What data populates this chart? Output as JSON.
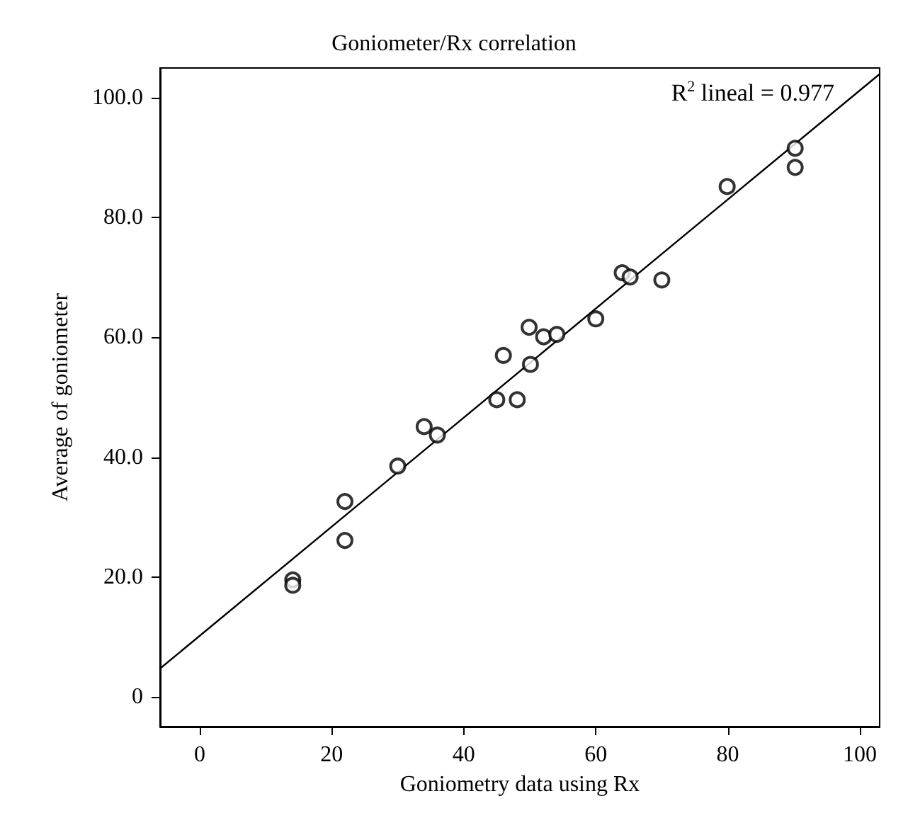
{
  "chart_data": {
    "type": "scatter",
    "title": "Goniometer/Rx correlation",
    "xlabel": "Goniometry data using Rx",
    "ylabel": "Average of goniometer",
    "annotations": [
      "R$^{2}$ lineal = 0.977"
    ],
    "xlim": [
      -6,
      103
    ],
    "ylim": [
      -5,
      105
    ],
    "xticks": [
      0,
      20,
      40,
      60,
      80,
      100
    ],
    "yticks": [
      0,
      {
        "value": 20,
        "label": "20.0"
      },
      {
        "value": 40,
        "label": "40.0"
      },
      {
        "value": 60,
        "label": "60.0"
      },
      {
        "value": 80,
        "label": "80.0"
      },
      {
        "value": 100,
        "label": "100.0"
      }
    ],
    "grid": false,
    "marker": "circle",
    "series": [
      {
        "color": "#000000",
        "x": [
          14.1,
          14.1,
          22,
          22,
          30,
          34,
          36,
          45,
          48.1,
          46,
          50.1,
          49.9,
          52.1,
          54.1,
          60,
          64,
          65.2,
          70,
          79.9,
          90.2,
          90.2
        ],
        "values": [
          19.5,
          18.6,
          32.6,
          26.1,
          38.5,
          45.1,
          43.7,
          49.6,
          49.6,
          57,
          55.5,
          61.7,
          60.1,
          60.5,
          63.1,
          70.8,
          70.1,
          69.6,
          85.2,
          91.6,
          88.4
        ]
      },
      {
        "type": "line",
        "color": "#000000",
        "x": [
          -6,
          103
        ],
        "values": [
          4.7,
          104
        ],
        "marker": "none",
        "line_style": "solid"
      }
    ]
  }
}
